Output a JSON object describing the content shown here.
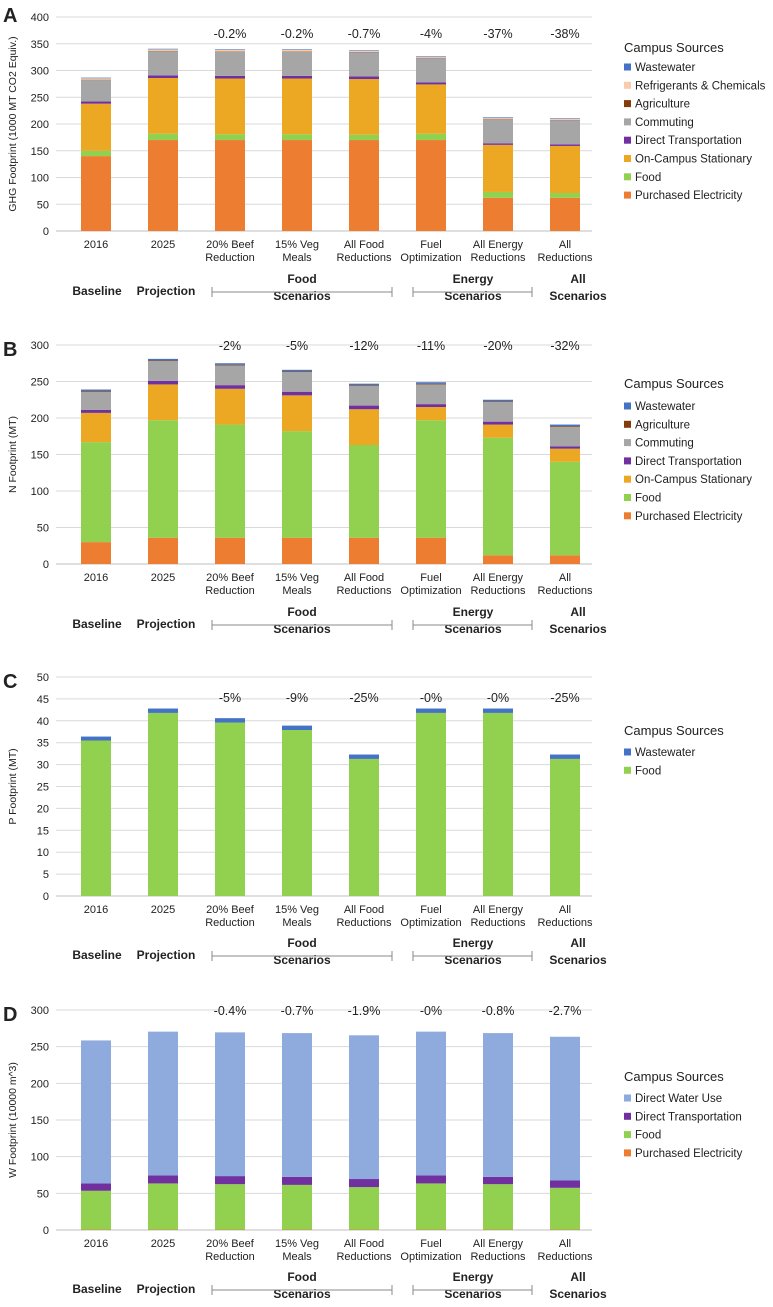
{
  "categories": [
    "2016",
    "2025",
    "20% Beef Reduction",
    "15% Veg Meals",
    "All Food Reductions",
    "Fuel Optimization",
    "All Energy Reductions",
    "All Reductions"
  ],
  "categories_lines": [
    [
      "2016"
    ],
    [
      "2025"
    ],
    [
      "20% Beef",
      "Reduction"
    ],
    [
      "15% Veg",
      "Meals"
    ],
    [
      "All Food",
      "Reductions"
    ],
    [
      "Fuel",
      "Optimization"
    ],
    [
      "All Energy",
      "Reductions"
    ],
    [
      "All",
      "Reductions"
    ]
  ],
  "groups": {
    "baseline": "Baseline",
    "projection": "Projection",
    "food": [
      "Food",
      "Scenarios"
    ],
    "energy": [
      "Energy",
      "Scenarios"
    ],
    "all": [
      "All",
      "Scenarios"
    ]
  },
  "legend_title": "Campus Sources",
  "colors": {
    "Purchased Electricity": "#ED7D31",
    "Food": "#92D050",
    "On-Campus Stationary": "#EDA823",
    "Direct Transportation": "#7030A0",
    "Commuting": "#A6A6A6",
    "Agriculture": "#843C0C",
    "Refrigerants & Chemicals": "#F8CBAD",
    "Wastewater": "#4472C4",
    "Direct Water Use": "#8FAADC"
  },
  "chart_data": [
    {
      "type": "bar",
      "stacked": true,
      "panel": "A",
      "ylabel": "GHG Footprint (1000 MT CO2 Equiv.)",
      "ylim": [
        0,
        400
      ],
      "ticks": [
        0,
        50,
        100,
        150,
        200,
        250,
        300,
        350,
        400
      ],
      "legend": [
        "Wastewater",
        "Refrigerants & Chemicals",
        "Agriculture",
        "Commuting",
        "Direct Transportation",
        "On-Campus Stationary",
        "Food",
        "Purchased Electricity"
      ],
      "annotations": [
        "",
        "",
        "-0.2%",
        "-0.2%",
        "-0.7%",
        "-4%",
        "-37%",
        "-38%"
      ],
      "series": [
        {
          "name": "Purchased Electricity",
          "values": [
            140,
            170,
            170,
            170,
            170,
            170,
            62,
            62
          ]
        },
        {
          "name": "Food",
          "values": [
            10,
            12,
            11,
            11,
            10,
            12,
            11,
            9
          ]
        },
        {
          "name": "On-Campus Stationary",
          "values": [
            88,
            104,
            104,
            104,
            104,
            92,
            88,
            88
          ]
        },
        {
          "name": "Direct Transportation",
          "values": [
            4,
            5,
            5,
            5,
            5,
            4,
            3,
            3
          ]
        },
        {
          "name": "Commuting",
          "values": [
            40,
            45,
            45,
            45,
            45,
            45,
            45,
            45
          ]
        },
        {
          "name": "Agriculture",
          "values": [
            0.5,
            0.5,
            0.5,
            0.5,
            0.5,
            0.5,
            0.5,
            0.5
          ]
        },
        {
          "name": "Refrigerants & Chemicals",
          "values": [
            3,
            3,
            3,
            3,
            2,
            2,
            2,
            2
          ]
        },
        {
          "name": "Wastewater",
          "values": [
            0.5,
            0.5,
            0.5,
            0.5,
            0.5,
            0.5,
            0.5,
            0.5
          ]
        }
      ]
    },
    {
      "type": "bar",
      "stacked": true,
      "panel": "B",
      "ylabel": "N Footprint (MT)",
      "ylim": [
        0,
        300
      ],
      "ticks": [
        0,
        50,
        100,
        150,
        200,
        250,
        300
      ],
      "legend": [
        "Wastewater",
        "Agriculture",
        "Commuting",
        "Direct Transportation",
        "On-Campus Stationary",
        "Food",
        "Purchased Electricity"
      ],
      "annotations": [
        "",
        "",
        "-2%",
        "-5%",
        "-12%",
        "-11%",
        "-20%",
        "-32%"
      ],
      "series": [
        {
          "name": "Purchased Electricity",
          "values": [
            30,
            36,
            36,
            36,
            36,
            36,
            12,
            12
          ]
        },
        {
          "name": "Food",
          "values": [
            137,
            161,
            155,
            146,
            127,
            161,
            161,
            128
          ]
        },
        {
          "name": "On-Campus Stationary",
          "values": [
            40,
            49,
            49,
            49,
            49,
            18,
            18,
            18
          ]
        },
        {
          "name": "Direct Transportation",
          "values": [
            4,
            5,
            5,
            5,
            5,
            4,
            4,
            3
          ]
        },
        {
          "name": "Commuting",
          "values": [
            25,
            27,
            27,
            27,
            27,
            27,
            27,
            27
          ]
        },
        {
          "name": "Agriculture",
          "values": [
            1,
            1,
            1,
            1,
            1,
            1,
            1,
            1
          ]
        },
        {
          "name": "Wastewater",
          "values": [
            2,
            2,
            2,
            2,
            2,
            2,
            2,
            2
          ]
        }
      ]
    },
    {
      "type": "bar",
      "stacked": true,
      "panel": "C",
      "ylabel": "P Footprint (MT)",
      "ylim": [
        0,
        50
      ],
      "ticks": [
        0,
        5,
        10,
        15,
        20,
        25,
        30,
        35,
        40,
        45,
        50
      ],
      "legend": [
        "Wastewater",
        "Food"
      ],
      "annotations": [
        "",
        "",
        "-5%",
        "-9%",
        "-25%",
        "-0%",
        "-0%",
        "-25%"
      ],
      "series": [
        {
          "name": "Food",
          "values": [
            35.5,
            41.8,
            39.6,
            37.9,
            31.3,
            41.8,
            41.8,
            31.3
          ]
        },
        {
          "name": "Wastewater",
          "values": [
            0.9,
            1,
            1,
            1,
            1,
            1,
            1,
            1
          ]
        }
      ]
    },
    {
      "type": "bar",
      "stacked": true,
      "panel": "D",
      "ylabel": "W Footprint (10000 m^3)",
      "ylim": [
        0,
        300
      ],
      "ticks": [
        0,
        50,
        100,
        150,
        200,
        250,
        300
      ],
      "legend": [
        "Direct Water Use",
        "Direct Transportation",
        "Food",
        "Purchased Electricity"
      ],
      "annotations": [
        "",
        "",
        "-0.4%",
        "-0.7%",
        "-1.9%",
        "-0%",
        "-0.8%",
        "-2.7%"
      ],
      "series": [
        {
          "name": "Purchased Electricity",
          "values": [
            0.5,
            0.5,
            0.5,
            0.5,
            0.5,
            0.5,
            0.5,
            0.5
          ]
        },
        {
          "name": "Food",
          "values": [
            53,
            63,
            62,
            61,
            58,
            63,
            62,
            57
          ]
        },
        {
          "name": "Direct Transportation",
          "values": [
            10,
            11,
            11,
            11,
            11,
            11,
            10,
            10
          ]
        },
        {
          "name": "Direct Water Use",
          "values": [
            195,
            196,
            196,
            196,
            196,
            196,
            196,
            196
          ]
        }
      ]
    }
  ]
}
